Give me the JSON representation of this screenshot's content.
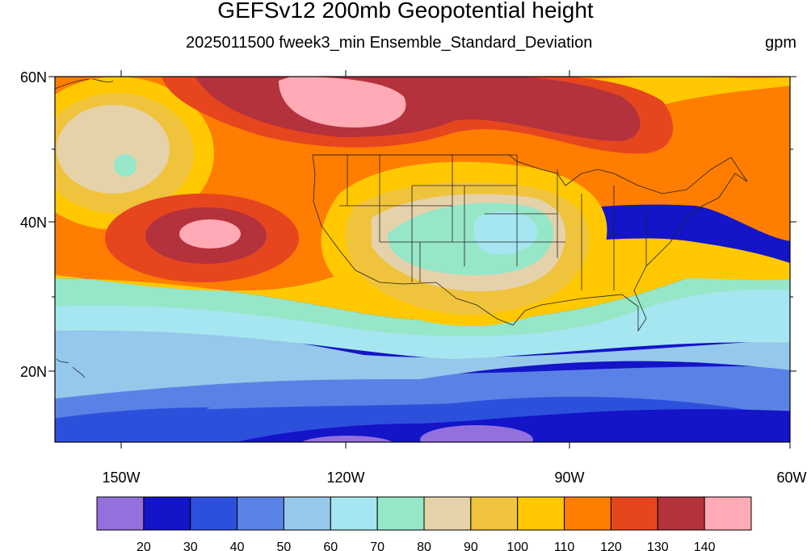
{
  "header": {
    "title": "GEFSv12 200mb Geopotential height",
    "subtitle": "2025011500 fweek3_min Ensemble_Standard_Deviation",
    "units": "gpm"
  },
  "axes": {
    "lat_labels": [
      "60N",
      "40N",
      "20N"
    ],
    "lon_labels": [
      "150W",
      "120W",
      "90W",
      "60W"
    ]
  },
  "colorbar": {
    "levels": [
      "20",
      "30",
      "40",
      "50",
      "60",
      "70",
      "80",
      "90",
      "100",
      "110",
      "120",
      "130",
      "140"
    ],
    "colors": [
      "#9370db",
      "#1414c8",
      "#2d50dc",
      "#5a82e6",
      "#96c8eb",
      "#a5e6f0",
      "#96e6c8",
      "#e6d2aa",
      "#f0c33c",
      "#ffc800",
      "#ff7d00",
      "#e6461e",
      "#b4323c",
      "#ffaab4"
    ]
  },
  "map": {
    "region": "Contiguous United States and surrounding Pacific/Atlantic",
    "lon_range": [
      -159,
      -60
    ],
    "lat_range": [
      10,
      60
    ]
  }
}
